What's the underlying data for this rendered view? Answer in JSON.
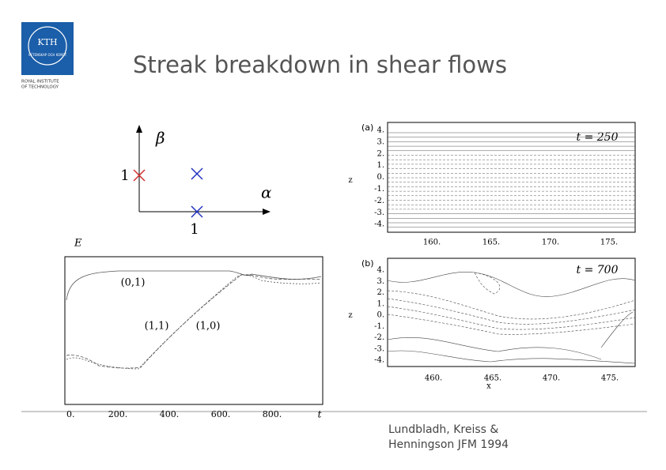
{
  "header": {
    "logo": {
      "name": "KTH",
      "motto": "VETENSKAP OCH KONST",
      "institute": [
        "ROYAL INSTITUTE",
        "OF TECHNOLOGY"
      ]
    },
    "title": "Streak breakdown in shear flows"
  },
  "wavenumber_diagram": {
    "y_label": "β",
    "x_label": "α",
    "y_tick": "1",
    "x_tick": "1"
  },
  "energy_plot": {
    "y_label": "E",
    "x_label": "t",
    "x_ticks": [
      "0.",
      "200.",
      "400.",
      "600.",
      "800."
    ],
    "curve_labels": [
      "(0,1)",
      "(1,1)",
      "(1,0)"
    ]
  },
  "panels": [
    {
      "label": "(a)",
      "time": "t = 250",
      "z_label": "z",
      "z_ticks": [
        "4.",
        "3.",
        "2.",
        "1.",
        "0.",
        "-1.",
        "-2.",
        "-3.",
        "-4."
      ],
      "x_ticks": [
        "160.",
        "165.",
        "170.",
        "175."
      ]
    },
    {
      "label": "(b)",
      "time": "t = 700",
      "z_label": "z",
      "z_ticks": [
        "4.",
        "3.",
        "2.",
        "1.",
        "0.",
        "-1.",
        "-2.",
        "-3.",
        "-4."
      ],
      "x_ticks": [
        "460.",
        "465.",
        "470.",
        "475."
      ],
      "x_label": "x"
    }
  ],
  "citation": [
    "Lundbladh, Kreiss &",
    "Henningson JFM 1994"
  ]
}
